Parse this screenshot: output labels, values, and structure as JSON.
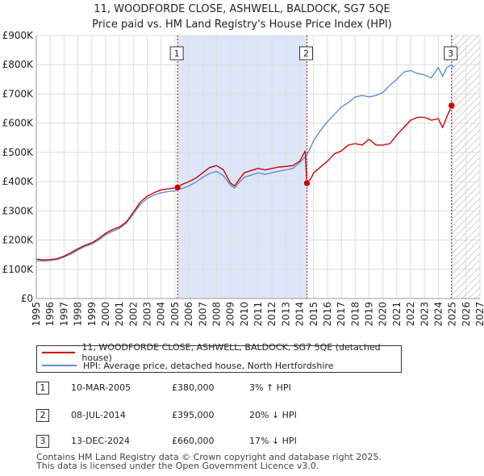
{
  "title_line1": "11, WOODFORDE CLOSE, ASHWELL, BALDOCK, SG7 5QE",
  "title_line2": "Price paid vs. HM Land Registry's House Price Index (HPI)",
  "colors": {
    "property": "#cc0000",
    "hpi": "#5b8fd6",
    "shade": "#dde6f7",
    "grid": "#dddddd",
    "sale_marker_line": "#cc0000"
  },
  "chart_data": {
    "type": "line",
    "ylim": [
      0,
      900000
    ],
    "xlim": [
      1995,
      2027
    ],
    "y_ticks": [
      0,
      100000,
      200000,
      300000,
      400000,
      500000,
      600000,
      700000,
      800000,
      900000
    ],
    "y_tick_labels": [
      "£0",
      "£100K",
      "£200K",
      "£300K",
      "£400K",
      "£500K",
      "£600K",
      "£700K",
      "£800K",
      "£900K"
    ],
    "x_ticks": [
      1995,
      1996,
      1997,
      1998,
      1999,
      2000,
      2001,
      2002,
      2003,
      2004,
      2005,
      2006,
      2007,
      2008,
      2009,
      2010,
      2011,
      2012,
      2013,
      2014,
      2015,
      2016,
      2017,
      2018,
      2019,
      2020,
      2021,
      2022,
      2023,
      2024,
      2025,
      2026,
      2027
    ],
    "shaded_period": [
      2005.19,
      2014.52
    ],
    "future_hatch_start": 2024.95,
    "series": [
      {
        "name": "11, WOODFORDE CLOSE, ASHWELL, BALDOCK, SG7 5QE (detached house)",
        "color": "#cc0000",
        "x": [
          1995.0,
          1995.5,
          1996.0,
          1996.5,
          1997.0,
          1997.5,
          1998.0,
          1998.5,
          1999.0,
          1999.5,
          2000.0,
          2000.5,
          2001.0,
          2001.5,
          2002.0,
          2002.5,
          2003.0,
          2003.5,
          2004.0,
          2004.5,
          2005.19,
          2005.5,
          2006.0,
          2006.5,
          2007.0,
          2007.5,
          2008.0,
          2008.5,
          2009.0,
          2009.3,
          2009.6,
          2010.0,
          2010.5,
          2011.0,
          2011.5,
          2012.0,
          2012.5,
          2013.0,
          2013.5,
          2014.0,
          2014.4,
          2014.45,
          2014.52,
          2014.8,
          2015.0,
          2015.5,
          2016.0,
          2016.5,
          2017.0,
          2017.5,
          2018.0,
          2018.5,
          2019.0,
          2019.5,
          2020.0,
          2020.5,
          2021.0,
          2021.5,
          2022.0,
          2022.5,
          2023.0,
          2023.5,
          2024.0,
          2024.3,
          2024.6,
          2024.95,
          2025.1
        ],
        "y": [
          135000,
          132000,
          133000,
          136000,
          145000,
          157000,
          170000,
          182000,
          190000,
          205000,
          223000,
          236000,
          245000,
          262000,
          295000,
          330000,
          350000,
          362000,
          372000,
          375000,
          380000,
          390000,
          400000,
          412000,
          430000,
          448000,
          455000,
          440000,
          395000,
          385000,
          405000,
          430000,
          438000,
          445000,
          440000,
          445000,
          450000,
          452000,
          455000,
          470000,
          505000,
          450000,
          395000,
          410000,
          430000,
          450000,
          470000,
          495000,
          505000,
          525000,
          530000,
          525000,
          545000,
          525000,
          525000,
          530000,
          560000,
          585000,
          610000,
          620000,
          620000,
          610000,
          615000,
          585000,
          620000,
          660000,
          650000
        ]
      },
      {
        "name": "HPI: Average price, detached house, North Hertfordshire",
        "color": "#5b8fd6",
        "x": [
          1995.0,
          1995.5,
          1996.0,
          1996.5,
          1997.0,
          1997.5,
          1998.0,
          1998.5,
          1999.0,
          1999.5,
          2000.0,
          2000.5,
          2001.0,
          2001.5,
          2002.0,
          2002.5,
          2003.0,
          2003.5,
          2004.0,
          2004.5,
          2005.0,
          2005.5,
          2006.0,
          2006.5,
          2007.0,
          2007.5,
          2008.0,
          2008.5,
          2009.0,
          2009.3,
          2009.6,
          2010.0,
          2010.5,
          2011.0,
          2011.5,
          2012.0,
          2012.5,
          2013.0,
          2013.5,
          2014.0,
          2014.5,
          2015.0,
          2015.5,
          2016.0,
          2016.5,
          2017.0,
          2017.5,
          2018.0,
          2018.5,
          2019.0,
          2019.5,
          2020.0,
          2020.5,
          2021.0,
          2021.5,
          2022.0,
          2022.5,
          2023.0,
          2023.5,
          2024.0,
          2024.3,
          2024.6,
          2024.95,
          2025.1
        ],
        "y": [
          130000,
          128000,
          130000,
          134000,
          142000,
          152000,
          166000,
          178000,
          187000,
          200000,
          218000,
          230000,
          240000,
          258000,
          290000,
          322000,
          342000,
          354000,
          362000,
          366000,
          368000,
          376000,
          385000,
          398000,
          415000,
          428000,
          435000,
          420000,
          388000,
          378000,
          395000,
          415000,
          422000,
          430000,
          425000,
          430000,
          436000,
          440000,
          445000,
          465000,
          490000,
          540000,
          575000,
          605000,
          630000,
          655000,
          670000,
          690000,
          695000,
          690000,
          695000,
          705000,
          730000,
          750000,
          775000,
          780000,
          770000,
          765000,
          755000,
          790000,
          760000,
          790000,
          800000,
          790000
        ]
      }
    ],
    "sales": [
      {
        "num": "1",
        "date": "10-MAR-2005",
        "year": 2005.19,
        "price": 380000,
        "price_label": "£380,000",
        "hpi_rel": "3% ↑ HPI"
      },
      {
        "num": "2",
        "date": "08-JUL-2014",
        "year": 2014.52,
        "price": 395000,
        "price_label": "£395,000",
        "hpi_rel": "20% ↓ HPI"
      },
      {
        "num": "3",
        "date": "13-DEC-2024",
        "year": 2024.95,
        "price": 660000,
        "price_label": "£660,000",
        "hpi_rel": "17% ↓ HPI"
      }
    ]
  },
  "legend": {
    "property_label": "11, WOODFORDE CLOSE, ASHWELL, BALDOCK, SG7 5QE (detached house)",
    "hpi_label": "HPI: Average price, detached house, North Hertfordshire"
  },
  "footer": {
    "line1": "Contains HM Land Registry data © Crown copyright and database right 2025.",
    "line2": "This data is licensed under the Open Government Licence v3.0."
  }
}
